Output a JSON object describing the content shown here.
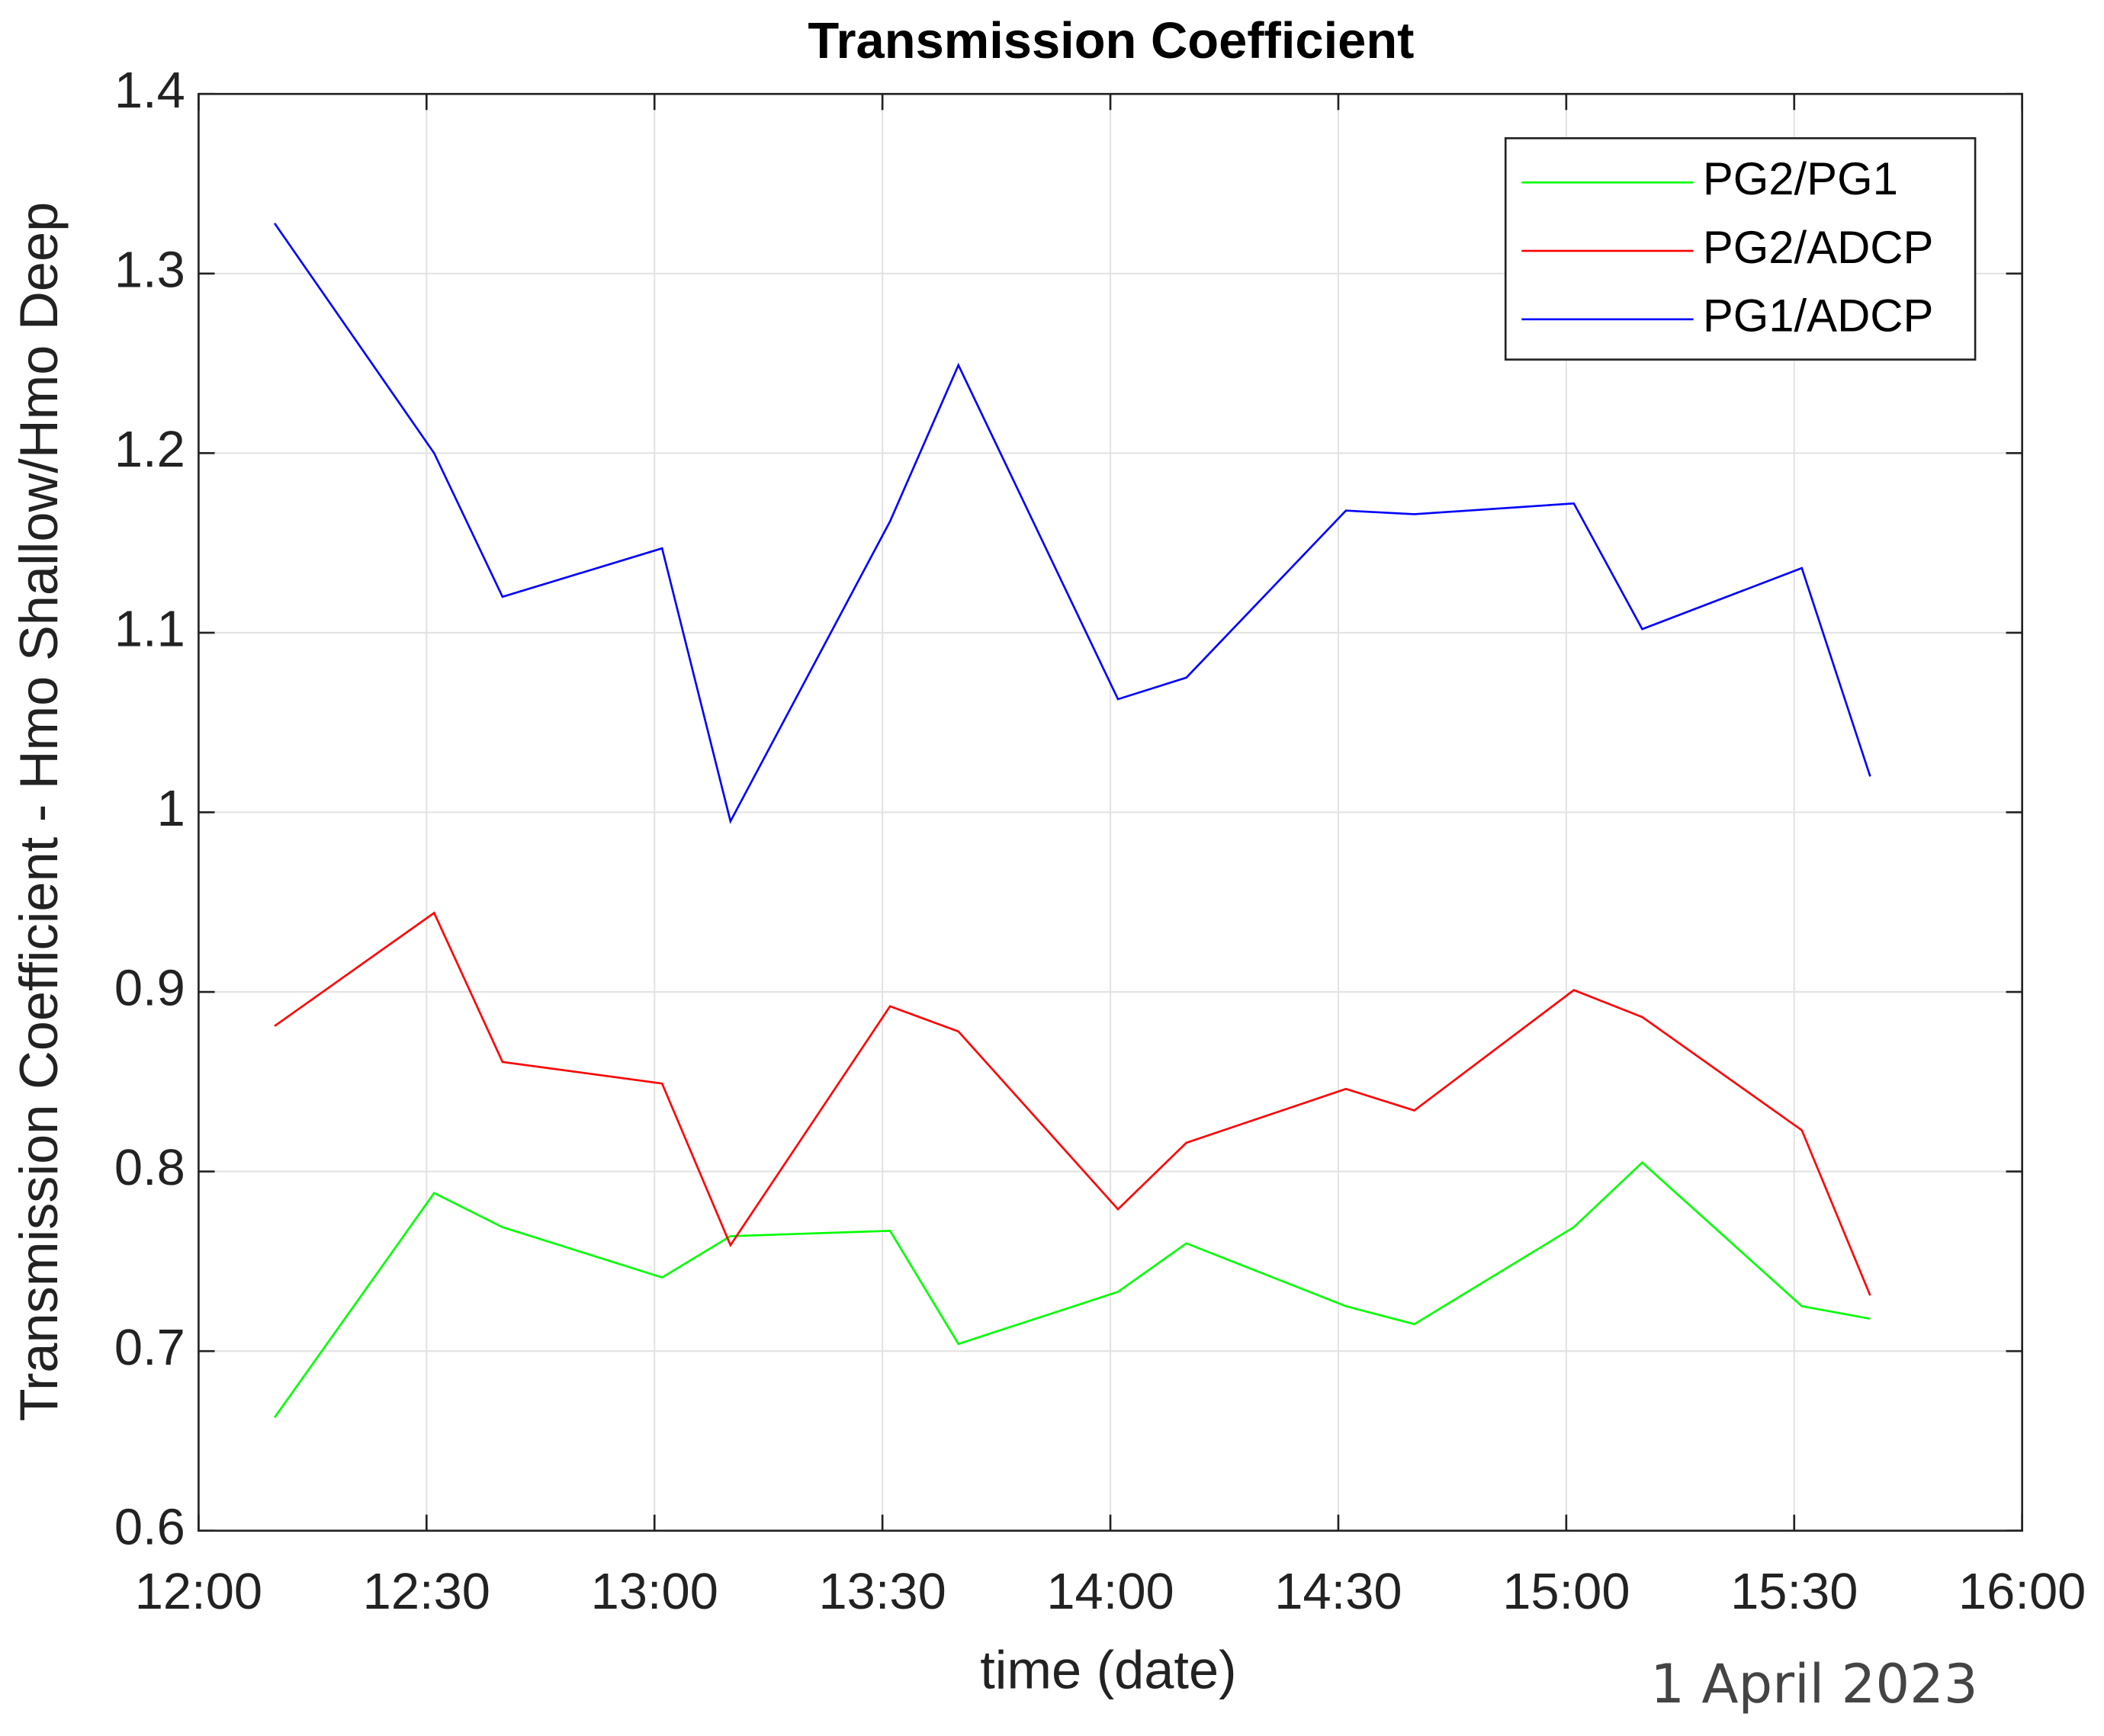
{
  "chart_data": {
    "type": "line",
    "title": "Transmission Coefficient",
    "x_label": "time (date)",
    "y_label": "Transmission Coefficient - Hmo Shallow/Hmo Deep",
    "annotation": "1 April 2023",
    "x": [
      "12:10",
      "12:31",
      "12:40",
      "13:01",
      "13:10",
      "13:31",
      "13:40",
      "14:01",
      "14:10",
      "14:31",
      "14:40",
      "15:01",
      "15:10",
      "15:31",
      "15:40"
    ],
    "series": [
      {
        "name": "PG2/PG1",
        "color": "#00ff00",
        "values": [
          0.663,
          0.788,
          0.769,
          0.741,
          0.764,
          0.767,
          0.704,
          0.733,
          0.76,
          0.725,
          0.715,
          0.769,
          0.805,
          0.725,
          0.718
        ]
      },
      {
        "name": "PG2/ADCP",
        "color": "#ff0000",
        "values": [
          0.881,
          0.944,
          0.861,
          0.849,
          0.759,
          0.892,
          0.878,
          0.779,
          0.816,
          0.846,
          0.834,
          0.901,
          0.886,
          0.823,
          0.731
        ]
      },
      {
        "name": "PG1/ADCP",
        "color": "#0000ff",
        "values": [
          1.328,
          1.2,
          1.12,
          1.147,
          0.995,
          1.162,
          1.249,
          1.063,
          1.075,
          1.168,
          1.166,
          1.172,
          1.102,
          1.136,
          1.02
        ]
      }
    ],
    "xlim": [
      "12:00",
      "16:00"
    ],
    "xticks": [
      "12:00",
      "12:30",
      "13:00",
      "13:30",
      "14:00",
      "14:30",
      "15:00",
      "15:30",
      "16:00"
    ],
    "ylim": [
      0.6,
      1.4
    ],
    "yticks": [
      0.6,
      0.7,
      0.8,
      0.9,
      1,
      1.1,
      1.2,
      1.3,
      1.4
    ],
    "grid": true,
    "legend": "northeast"
  }
}
